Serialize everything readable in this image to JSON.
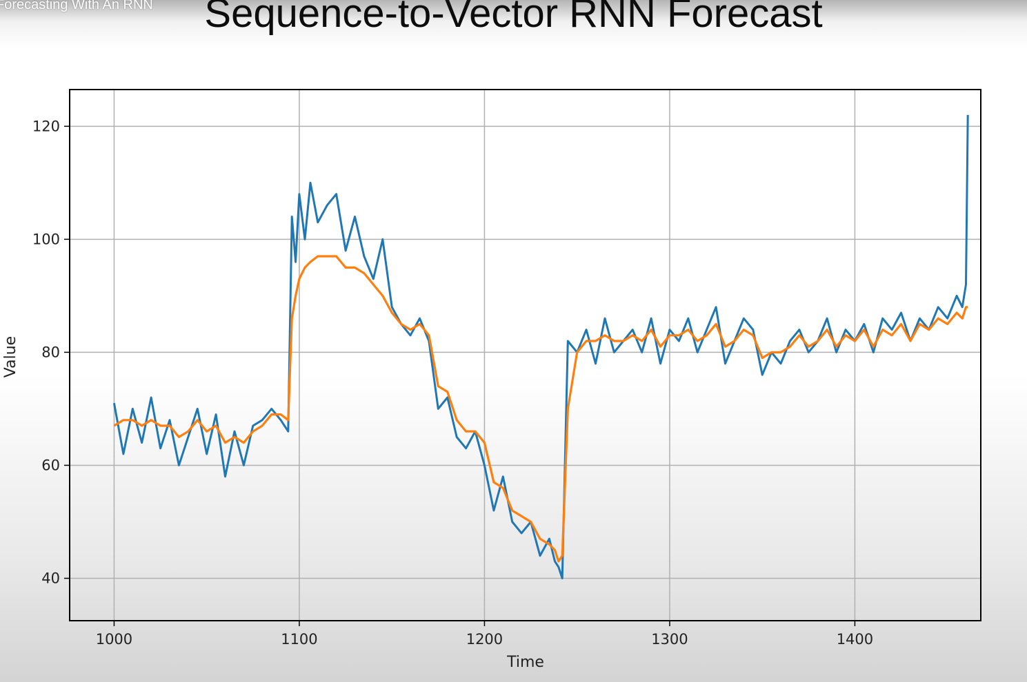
{
  "video_title": "Forecasting With An RNN",
  "slide_title": "Sequence-to-Vector RNN Forecast",
  "chart_data": {
    "type": "line",
    "title": "",
    "xlabel": "Time",
    "ylabel": "Value",
    "xlim": [
      976,
      1468
    ],
    "ylim": [
      32.5,
      126.5
    ],
    "xticks": [
      1000,
      1100,
      1200,
      1300,
      1400
    ],
    "yticks": [
      40,
      60,
      80,
      100,
      120
    ],
    "grid": true,
    "legend": "none",
    "series": [
      {
        "color": "#1f77b4",
        "x": [
          1000,
          1005,
          1010,
          1015,
          1020,
          1025,
          1030,
          1035,
          1040,
          1045,
          1050,
          1055,
          1060,
          1065,
          1070,
          1075,
          1080,
          1085,
          1090,
          1094,
          1096,
          1098,
          1100,
          1103,
          1106,
          1110,
          1115,
          1120,
          1125,
          1130,
          1135,
          1140,
          1145,
          1150,
          1155,
          1160,
          1165,
          1170,
          1175,
          1180,
          1185,
          1190,
          1195,
          1200,
          1205,
          1210,
          1215,
          1220,
          1225,
          1230,
          1235,
          1238,
          1240,
          1242,
          1245,
          1250,
          1255,
          1260,
          1265,
          1270,
          1275,
          1280,
          1285,
          1290,
          1295,
          1300,
          1305,
          1310,
          1315,
          1320,
          1325,
          1330,
          1335,
          1340,
          1345,
          1350,
          1355,
          1360,
          1365,
          1370,
          1375,
          1380,
          1385,
          1390,
          1395,
          1400,
          1405,
          1410,
          1415,
          1420,
          1425,
          1430,
          1435,
          1440,
          1445,
          1450,
          1455,
          1458,
          1460,
          1461
        ],
        "values": [
          71,
          62,
          70,
          64,
          72,
          63,
          68,
          60,
          65,
          70,
          62,
          69,
          58,
          66,
          60,
          67,
          68,
          70,
          68,
          66,
          104,
          96,
          108,
          100,
          110,
          103,
          106,
          108,
          98,
          104,
          97,
          93,
          100,
          88,
          85,
          83,
          86,
          82,
          70,
          72,
          65,
          63,
          66,
          60,
          52,
          58,
          50,
          48,
          50,
          44,
          47,
          43,
          42,
          40,
          82,
          80,
          84,
          78,
          86,
          80,
          82,
          84,
          80,
          86,
          78,
          84,
          82,
          86,
          80,
          84,
          88,
          78,
          82,
          86,
          84,
          76,
          80,
          78,
          82,
          84,
          80,
          82,
          86,
          80,
          84,
          82,
          85,
          80,
          86,
          84,
          87,
          82,
          86,
          84,
          88,
          86,
          90,
          88,
          92,
          122
        ]
      },
      {
        "color": "#ff7f0e",
        "x": [
          1000,
          1005,
          1010,
          1015,
          1020,
          1025,
          1030,
          1035,
          1040,
          1045,
          1050,
          1055,
          1060,
          1065,
          1070,
          1075,
          1080,
          1085,
          1090,
          1094,
          1096,
          1098,
          1100,
          1103,
          1106,
          1110,
          1115,
          1120,
          1125,
          1130,
          1135,
          1140,
          1145,
          1150,
          1155,
          1160,
          1165,
          1170,
          1175,
          1180,
          1185,
          1190,
          1195,
          1200,
          1205,
          1210,
          1215,
          1220,
          1225,
          1230,
          1235,
          1238,
          1240,
          1242,
          1245,
          1250,
          1255,
          1260,
          1265,
          1270,
          1275,
          1280,
          1285,
          1290,
          1295,
          1300,
          1305,
          1310,
          1315,
          1320,
          1325,
          1330,
          1335,
          1340,
          1345,
          1350,
          1355,
          1360,
          1365,
          1370,
          1375,
          1380,
          1385,
          1390,
          1395,
          1400,
          1405,
          1410,
          1415,
          1420,
          1425,
          1430,
          1435,
          1440,
          1445,
          1450,
          1455,
          1458,
          1460,
          1461
        ],
        "values": [
          67,
          68,
          68,
          67,
          68,
          67,
          67,
          65,
          66,
          68,
          66,
          67,
          64,
          65,
          64,
          66,
          67,
          69,
          69,
          68,
          86,
          90,
          93,
          95,
          96,
          97,
          97,
          97,
          95,
          95,
          94,
          92,
          90,
          87,
          85,
          84,
          85,
          83,
          74,
          73,
          68,
          66,
          66,
          64,
          57,
          56,
          52,
          51,
          50,
          47,
          46,
          45,
          43,
          44,
          70,
          80,
          82,
          82,
          83,
          82,
          82,
          83,
          82,
          84,
          81,
          83,
          83,
          84,
          82,
          83,
          85,
          81,
          82,
          84,
          83,
          79,
          80,
          80,
          81,
          83,
          81,
          82,
          84,
          81,
          83,
          82,
          84,
          81,
          84,
          83,
          85,
          82,
          85,
          84,
          86,
          85,
          87,
          86,
          88,
          88
        ]
      }
    ]
  }
}
